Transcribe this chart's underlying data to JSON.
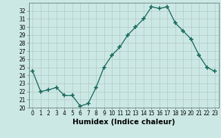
{
  "x": [
    0,
    1,
    2,
    3,
    4,
    5,
    6,
    7,
    8,
    9,
    10,
    11,
    12,
    13,
    14,
    15,
    16,
    17,
    18,
    19,
    20,
    21,
    22,
    23
  ],
  "y": [
    24.5,
    22.0,
    22.2,
    22.5,
    21.5,
    21.5,
    20.2,
    20.5,
    22.5,
    25.0,
    26.5,
    27.5,
    29.0,
    30.0,
    31.0,
    32.5,
    32.3,
    32.5,
    30.5,
    29.5,
    28.5,
    26.5,
    25.0,
    24.5
  ],
  "line_color": "#1a6b5e",
  "marker": "+",
  "marker_size": 4,
  "marker_edge_width": 1.2,
  "line_width": 1.0,
  "bg_color": "#cce8e4",
  "grid_color": "#b0c8c4",
  "xlabel": "Humidex (Indice chaleur)",
  "xlim": [
    -0.5,
    23.5
  ],
  "ylim": [
    20,
    33
  ],
  "yticks": [
    20,
    21,
    22,
    23,
    24,
    25,
    26,
    27,
    28,
    29,
    30,
    31,
    32
  ],
  "xticks": [
    0,
    1,
    2,
    3,
    4,
    5,
    6,
    7,
    8,
    9,
    10,
    11,
    12,
    13,
    14,
    15,
    16,
    17,
    18,
    19,
    20,
    21,
    22,
    23
  ],
  "xtick_labels": [
    "0",
    "1",
    "2",
    "3",
    "4",
    "5",
    "6",
    "7",
    "8",
    "9",
    "10",
    "11",
    "12",
    "13",
    "14",
    "15",
    "16",
    "17",
    "18",
    "19",
    "20",
    "21",
    "22",
    "23"
  ],
  "tick_fontsize": 5.5,
  "label_fontsize": 7.5
}
